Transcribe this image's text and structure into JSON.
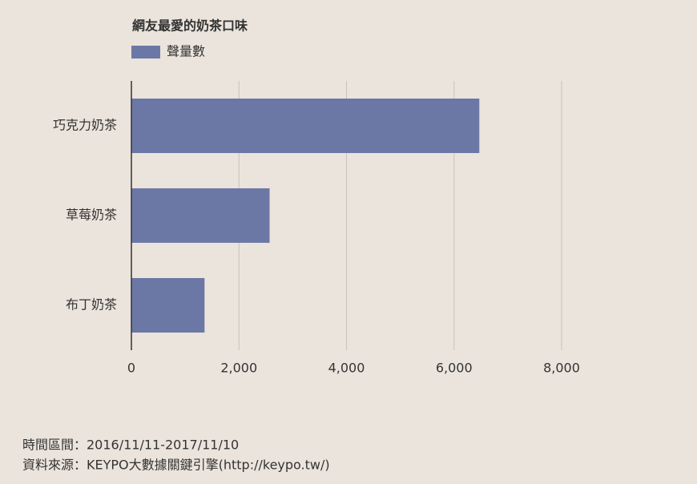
{
  "chart_data": {
    "type": "bar",
    "orientation": "horizontal",
    "title": "網友最愛的奶茶口味",
    "categories": [
      "巧克力奶茶",
      "草莓奶茶",
      "布丁奶茶"
    ],
    "series": [
      {
        "name": "聲量數",
        "color": "#6b78a6",
        "values": [
          6470,
          2570,
          1360
        ]
      }
    ],
    "xlim": [
      0,
      8000
    ],
    "xticks": [
      0,
      {
        "value": 2000,
        "label": "2,000"
      },
      {
        "value": 4000,
        "label": "4,000"
      },
      {
        "value": 6000,
        "label": "6,000"
      },
      {
        "value": 8000,
        "label": "8,000"
      }
    ],
    "grid": true,
    "footnotes": [
      "時間區間：2016/11/11-2017/11/10",
      "資料來源：KEYPO大數據關鍵引擎(http://keypo.tw/)"
    ]
  }
}
